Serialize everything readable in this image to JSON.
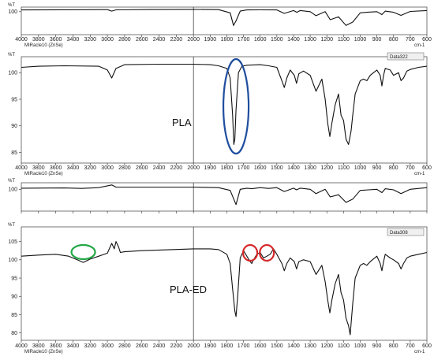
{
  "chart_data": [
    {
      "type": "line",
      "panel": "overview",
      "ylabel": "%T",
      "xlabel": "cm-1",
      "instrument_label": "MIRacle10 (ZnSe)",
      "x_ticks": [
        4000,
        3800,
        3600,
        3400,
        3200,
        3000,
        2800,
        2600,
        2400,
        2200,
        2000,
        1900,
        1800,
        1700,
        1600,
        1500,
        1400,
        1300,
        1200,
        1100,
        1000,
        900,
        800,
        700,
        600
      ],
      "y_ticks": [
        100
      ],
      "ylim": [
        80,
        104
      ],
      "series": [
        {
          "x": [
            4000,
            3500,
            3000,
            2950,
            2900,
            2500,
            2000,
            1850,
            1780,
            1760,
            1745,
            1720,
            1680,
            1600,
            1500,
            1455,
            1400,
            1380,
            1360,
            1300,
            1265,
            1210,
            1180,
            1130,
            1085,
            1045,
            1000,
            960,
            900,
            870,
            850,
            800,
            755,
            700,
            600
          ],
          "y": [
            101.5,
            101.7,
            101.8,
            100.5,
            101.6,
            101.9,
            102.0,
            101.8,
            99.0,
            88.0,
            92.0,
            100.5,
            101.5,
            101.6,
            101.5,
            98.5,
            101.0,
            99.5,
            101.0,
            100.0,
            96.5,
            100.0,
            93.0,
            95.5,
            88.0,
            91.0,
            99.0,
            99.5,
            100.0,
            97.5,
            100.5,
            99.5,
            96.8,
            100.2,
            101.0
          ]
        }
      ]
    },
    {
      "type": "line",
      "panel": "PLA",
      "title": "PLA",
      "ylabel": "%T",
      "xlabel": "cm-1",
      "legend": "Data322",
      "instrument_label": "MIRacle10 (ZnSe)",
      "x_ticks": [
        4000,
        3800,
        3600,
        3400,
        3200,
        3000,
        2800,
        2600,
        2400,
        2200,
        2000,
        1900,
        1800,
        1700,
        1600,
        1500,
        1400,
        1300,
        1200,
        1100,
        1000,
        900,
        800,
        700,
        600
      ],
      "y_ticks": [
        85,
        90,
        95,
        100
      ],
      "ylim": [
        83,
        103
      ],
      "series": [
        {
          "x": [
            4000,
            3800,
            3500,
            3100,
            3000,
            2950,
            2900,
            2800,
            2400,
            2000,
            1900,
            1850,
            1800,
            1780,
            1765,
            1758,
            1752,
            1745,
            1730,
            1710,
            1680,
            1600,
            1550,
            1500,
            1470,
            1455,
            1440,
            1420,
            1395,
            1382,
            1368,
            1340,
            1300,
            1265,
            1230,
            1210,
            1195,
            1182,
            1170,
            1150,
            1130,
            1115,
            1100,
            1085,
            1070,
            1055,
            1045,
            1030,
            1000,
            980,
            960,
            940,
            900,
            880,
            870,
            860,
            850,
            820,
            800,
            770,
            755,
            740,
            720,
            700,
            650,
            600
          ],
          "y": [
            101.0,
            101.2,
            101.3,
            101.2,
            100.5,
            99.0,
            100.8,
            101.5,
            101.6,
            101.6,
            101.5,
            101.3,
            100.8,
            99.0,
            92.0,
            86.5,
            87.5,
            93.0,
            100.0,
            101.2,
            101.4,
            101.5,
            101.3,
            101.0,
            98.5,
            97.2,
            99.0,
            100.5,
            99.5,
            98.0,
            99.8,
            100.3,
            99.5,
            96.5,
            98.8,
            95.0,
            90.5,
            88.0,
            90.5,
            94.0,
            96.0,
            92.0,
            91.0,
            87.5,
            86.5,
            89.0,
            92.0,
            96.0,
            98.5,
            98.8,
            98.5,
            99.5,
            100.5,
            99.5,
            97.5,
            99.5,
            100.8,
            100.5,
            99.5,
            100.0,
            98.5,
            99.0,
            100.3,
            100.6,
            101.0,
            101.2
          ]
        }
      ],
      "annotations": [
        {
          "shape": "ellipse",
          "color": "#1f4e9e",
          "x": 1745
        }
      ]
    },
    {
      "type": "line",
      "panel": "overview",
      "ylabel": "%T",
      "x_ticks": [
        4000,
        3800,
        3600,
        3400,
        3200,
        3000,
        2800,
        2600,
        2400,
        2200,
        2000,
        1900,
        1800,
        1700,
        1600,
        1500,
        1400,
        1300,
        1200,
        1100,
        1000,
        900,
        800,
        700,
        600
      ],
      "y_ticks": [
        100
      ],
      "ylim": [
        80,
        106
      ],
      "series": [
        {
          "x": [
            4000,
            3500,
            3300,
            3100,
            2950,
            2900,
            2800,
            2000,
            1850,
            1780,
            1745,
            1720,
            1680,
            1650,
            1600,
            1550,
            1500,
            1455,
            1400,
            1382,
            1360,
            1300,
            1265,
            1210,
            1180,
            1130,
            1085,
            1045,
            1000,
            950,
            900,
            870,
            850,
            800,
            755,
            700,
            600
          ],
          "y": [
            101.0,
            101.2,
            100.8,
            101.5,
            104.0,
            102.0,
            102.0,
            102.0,
            101.5,
            99.0,
            86.0,
            100.0,
            101.0,
            100.5,
            101.5,
            100.8,
            101.5,
            98.0,
            101.0,
            99.5,
            101.0,
            100.0,
            96.0,
            100.0,
            93.0,
            95.0,
            88.0,
            91.0,
            99.0,
            99.5,
            100.0,
            97.0,
            100.5,
            99.5,
            96.0,
            100.0,
            101.5
          ]
        }
      ]
    },
    {
      "type": "line",
      "panel": "PLA-ED",
      "title": "PLA-ED",
      "ylabel": "%T",
      "xlabel": "cm-1",
      "legend": "Data308",
      "instrument_label": "MIRacle10 (ZnSe)",
      "x_ticks": [
        4000,
        3800,
        3600,
        3400,
        3200,
        3000,
        2800,
        2600,
        2400,
        2200,
        2000,
        1900,
        1800,
        1700,
        1600,
        1500,
        1400,
        1300,
        1200,
        1100,
        1000,
        900,
        800,
        700,
        600
      ],
      "y_ticks": [
        80,
        85,
        90,
        95,
        100,
        105
      ],
      "ylim": [
        78,
        109
      ],
      "series": [
        {
          "x": [
            4000,
            3800,
            3600,
            3450,
            3350,
            3280,
            3200,
            3100,
            3000,
            2950,
            2920,
            2900,
            2870,
            2850,
            2800,
            2600,
            2000,
            1900,
            1850,
            1800,
            1780,
            1765,
            1752,
            1745,
            1735,
            1720,
            1700,
            1680,
            1660,
            1650,
            1640,
            1620,
            1600,
            1580,
            1560,
            1540,
            1520,
            1500,
            1470,
            1455,
            1440,
            1420,
            1395,
            1382,
            1368,
            1340,
            1300,
            1265,
            1230,
            1210,
            1195,
            1182,
            1170,
            1150,
            1130,
            1115,
            1100,
            1085,
            1070,
            1060,
            1045,
            1030,
            1000,
            980,
            960,
            940,
            900,
            880,
            870,
            860,
            850,
            820,
            800,
            770,
            755,
            740,
            720,
            700,
            650,
            600
          ],
          "y": [
            101.0,
            101.3,
            101.5,
            101.0,
            100.0,
            99.3,
            100.2,
            101.0,
            101.8,
            104.5,
            103.0,
            105.0,
            103.5,
            102.0,
            102.2,
            102.5,
            103.0,
            103.0,
            102.8,
            101.5,
            99.0,
            92.0,
            86.0,
            84.5,
            90.0,
            100.5,
            102.5,
            101.0,
            99.5,
            99.0,
            100.0,
            101.5,
            102.0,
            100.5,
            101.0,
            101.5,
            103.0,
            101.5,
            99.0,
            97.0,
            99.0,
            100.5,
            99.5,
            97.5,
            99.5,
            100.0,
            99.5,
            96.0,
            98.5,
            94.0,
            89.0,
            85.5,
            89.0,
            93.5,
            96.0,
            91.0,
            89.0,
            84.0,
            82.0,
            79.5,
            88.0,
            95.0,
            98.5,
            99.0,
            98.5,
            99.5,
            101.0,
            99.0,
            97.0,
            99.5,
            101.5,
            100.5,
            100.0,
            99.0,
            97.5,
            99.0,
            100.5,
            101.0,
            101.5,
            102.0
          ]
        }
      ],
      "annotations": [
        {
          "shape": "ellipse",
          "color": "#22a745",
          "x": 3280
        },
        {
          "shape": "ellipse",
          "color": "#d62728",
          "x": 1660
        },
        {
          "shape": "ellipse",
          "color": "#d62728",
          "x": 1560
        }
      ]
    }
  ],
  "panels_text": {
    "ylabel_overview": "%T",
    "ylabel_main": "%T",
    "xunit": "cm-1",
    "instrument": "MIRacle10 (ZnSe)",
    "label_pla": "PLA",
    "label_plaed": "PLA-ED",
    "legend_pla": "Data322",
    "legend_plaed": "Data308"
  }
}
